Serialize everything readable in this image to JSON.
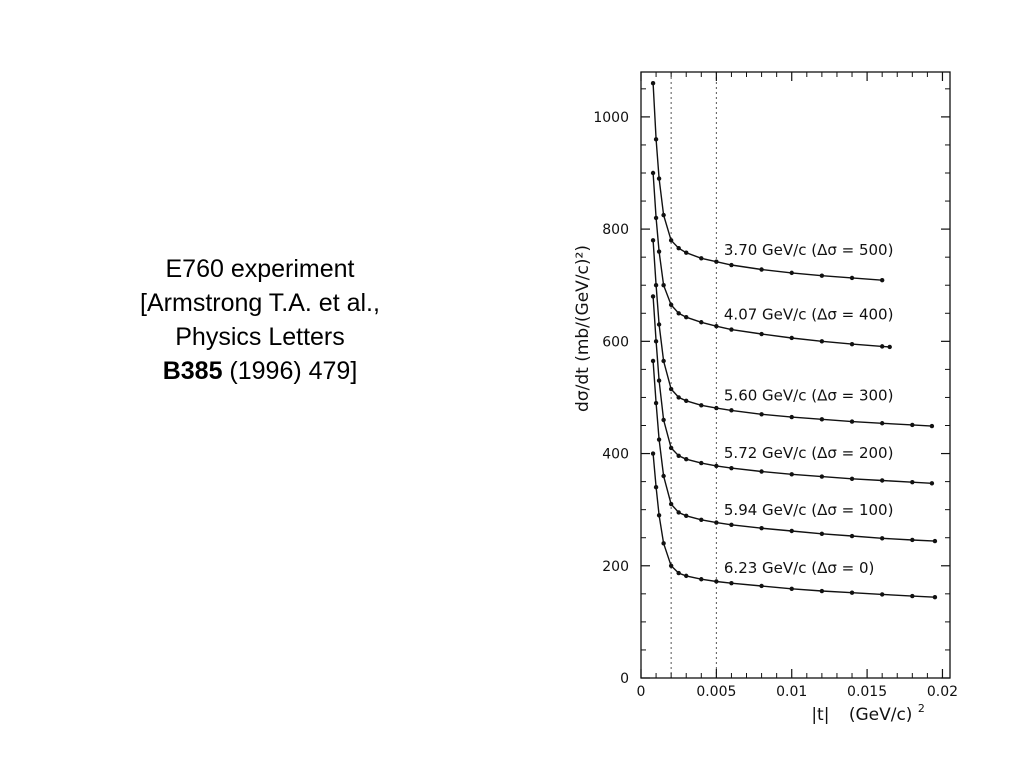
{
  "caption": {
    "line1": "E760 experiment",
    "line2": "[Armstrong T.A. et al.,",
    "line3": "Physics Letters",
    "line4_bold": "B385",
    "line4_rest": " (1996) 479]"
  },
  "chart_data": {
    "type": "line",
    "xlabel_main": "|t|",
    "xlabel_unit": "(GeV/c)",
    "xlabel_unit_sup": "2",
    "ylabel": "dσ/dt (mb/(GeV/c)²)",
    "xlim": [
      0,
      0.0205
    ],
    "ylim": [
      0,
      1080
    ],
    "xticks": [
      {
        "value": 0,
        "label": "0"
      },
      {
        "value": 0.005,
        "label": "0.005"
      },
      {
        "value": 0.01,
        "label": "0.01"
      },
      {
        "value": 0.015,
        "label": "0.015"
      },
      {
        "value": 0.02,
        "label": "0.02"
      }
    ],
    "yticks": [
      {
        "value": 0,
        "label": "0"
      },
      {
        "value": 200,
        "label": "200"
      },
      {
        "value": 400,
        "label": "400"
      },
      {
        "value": 600,
        "label": "600"
      },
      {
        "value": 800,
        "label": "800"
      },
      {
        "value": 1000,
        "label": "1000"
      }
    ],
    "vertical_lines": [
      0.002,
      0.005
    ],
    "series": [
      {
        "name": "3.70 GeV/c (Δσ = 500)",
        "x": [
          0.0008,
          0.001,
          0.0012,
          0.0015,
          0.002,
          0.0025,
          0.003,
          0.004,
          0.005,
          0.006,
          0.008,
          0.01,
          0.012,
          0.014,
          0.016
        ],
        "y": [
          1060,
          960,
          890,
          825,
          780,
          766,
          758,
          748,
          742,
          736,
          728,
          722,
          717,
          713,
          709
        ]
      },
      {
        "name": "4.07 GeV/c (Δσ = 400)",
        "x": [
          0.0008,
          0.001,
          0.0012,
          0.0015,
          0.002,
          0.0025,
          0.003,
          0.004,
          0.005,
          0.006,
          0.008,
          0.01,
          0.012,
          0.014,
          0.016,
          0.0165
        ],
        "y": [
          900,
          820,
          760,
          700,
          665,
          650,
          643,
          634,
          627,
          621,
          613,
          606,
          600,
          595,
          591,
          590
        ]
      },
      {
        "name": "5.60 GeV/c (Δσ = 300)",
        "x": [
          0.0008,
          0.001,
          0.0012,
          0.0015,
          0.002,
          0.0025,
          0.003,
          0.004,
          0.005,
          0.006,
          0.008,
          0.01,
          0.012,
          0.014,
          0.016,
          0.018,
          0.0193
        ],
        "y": [
          780,
          700,
          630,
          565,
          515,
          500,
          494,
          486,
          481,
          477,
          470,
          465,
          461,
          457,
          454,
          451,
          449
        ]
      },
      {
        "name": "5.72 GeV/c (Δσ = 200)",
        "x": [
          0.0008,
          0.001,
          0.0012,
          0.0015,
          0.002,
          0.0025,
          0.003,
          0.004,
          0.005,
          0.006,
          0.008,
          0.01,
          0.012,
          0.014,
          0.016,
          0.018,
          0.0193
        ],
        "y": [
          680,
          600,
          530,
          460,
          410,
          396,
          390,
          383,
          378,
          374,
          368,
          363,
          359,
          355,
          352,
          349,
          347
        ]
      },
      {
        "name": "5.94 GeV/c (Δσ = 100)",
        "x": [
          0.0008,
          0.001,
          0.0012,
          0.0015,
          0.002,
          0.0025,
          0.003,
          0.004,
          0.005,
          0.006,
          0.008,
          0.01,
          0.012,
          0.014,
          0.016,
          0.018,
          0.0195
        ],
        "y": [
          565,
          490,
          425,
          360,
          310,
          295,
          289,
          282,
          277,
          273,
          267,
          262,
          257,
          253,
          249,
          246,
          244
        ]
      },
      {
        "name": "6.23 GeV/c (Δσ = 0)",
        "x": [
          0.0008,
          0.001,
          0.0012,
          0.0015,
          0.002,
          0.0025,
          0.003,
          0.004,
          0.005,
          0.006,
          0.008,
          0.01,
          0.012,
          0.014,
          0.016,
          0.018,
          0.0195
        ],
        "y": [
          400,
          340,
          290,
          240,
          200,
          187,
          182,
          176,
          172,
          169,
          164,
          159,
          155,
          152,
          149,
          146,
          144
        ]
      }
    ]
  }
}
